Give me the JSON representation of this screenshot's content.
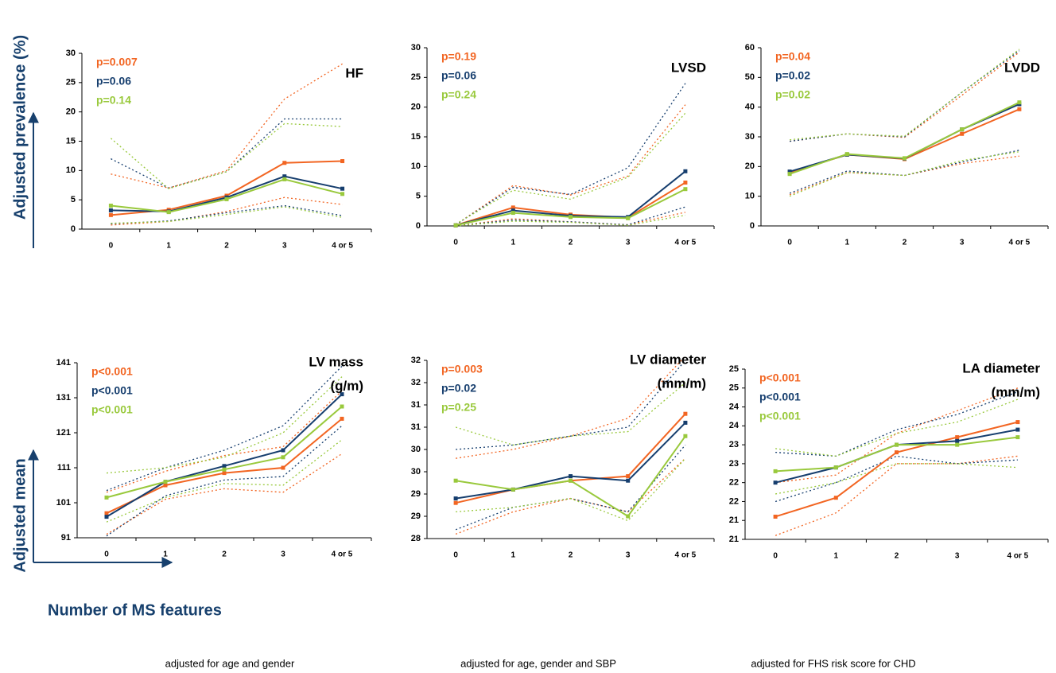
{
  "figure": {
    "y_label_top": "Adjusted prevalence (%)",
    "y_label_bottom": "Adjusted mean",
    "x_label": "Number of MS features",
    "notes": [
      "adjusted for age and gender",
      "adjusted for age, gender and SBP",
      "adjusted for FHS risk score for CHD"
    ]
  },
  "chart_data": [
    {
      "type": "line",
      "title": "HF",
      "categories": [
        "0",
        "1",
        "2",
        "3",
        "4 or 5"
      ],
      "ylim": [
        0,
        30
      ],
      "yticks": [
        0,
        5,
        10,
        15,
        20,
        25,
        30
      ],
      "series": [
        {
          "name": "p=0.007",
          "color": "#f26522",
          "values": [
            2.4,
            3.3,
            5.7,
            11.3,
            11.6
          ],
          "upper": [
            9.4,
            7.0,
            10.0,
            22.2,
            28.2
          ],
          "lower": [
            0.7,
            1.3,
            3.0,
            5.4,
            4.2
          ]
        },
        {
          "name": "p=0.06",
          "color": "#163e6e",
          "values": [
            3.2,
            3.0,
            5.4,
            9.0,
            6.9
          ],
          "upper": [
            12.0,
            7.0,
            9.8,
            18.8,
            18.8
          ],
          "lower": [
            0.9,
            1.4,
            2.8,
            4.0,
            2.3
          ]
        },
        {
          "name": "p=0.14",
          "color": "#99c93c",
          "values": [
            4.0,
            2.9,
            5.1,
            8.5,
            6.0
          ],
          "upper": [
            15.5,
            6.9,
            9.8,
            18.0,
            17.5
          ],
          "lower": [
            1.0,
            1.3,
            2.5,
            3.8,
            2.0
          ]
        }
      ]
    },
    {
      "type": "line",
      "title": "LVSD",
      "categories": [
        "0",
        "1",
        "2",
        "3",
        "4 or 5"
      ],
      "ylim": [
        0,
        30
      ],
      "yticks": [
        0,
        5,
        10,
        15,
        20,
        25,
        30
      ],
      "series": [
        {
          "name": "p=0.19",
          "color": "#f26522",
          "values": [
            0.1,
            3.1,
            1.9,
            1.4,
            7.3
          ],
          "upper": [
            0.2,
            6.8,
            5.2,
            8.4,
            20.4
          ],
          "lower": [
            0.0,
            1.2,
            0.7,
            0.2,
            2.3
          ]
        },
        {
          "name": "p=0.06",
          "color": "#163e6e",
          "values": [
            0.1,
            2.6,
            1.7,
            1.5,
            9.2
          ],
          "upper": [
            0.2,
            6.5,
            5.3,
            9.8,
            24.0
          ],
          "lower": [
            0.0,
            1.0,
            0.7,
            0.2,
            3.2
          ]
        },
        {
          "name": "p=0.24",
          "color": "#99c93c",
          "values": [
            0.1,
            2.2,
            1.5,
            1.3,
            6.2
          ],
          "upper": [
            0.3,
            6.0,
            4.5,
            8.2,
            19.0
          ],
          "lower": [
            0.0,
            0.8,
            0.6,
            0.1,
            1.8
          ]
        }
      ]
    },
    {
      "type": "line",
      "title": "LVDD",
      "categories": [
        "0",
        "1",
        "2",
        "3",
        "4 or 5"
      ],
      "ylim": [
        0,
        60
      ],
      "yticks": [
        0,
        10,
        20,
        30,
        40,
        50,
        60
      ],
      "series": [
        {
          "name": "p=0.04",
          "color": "#f26522",
          "values": [
            18.0,
            24.0,
            22.5,
            31.0,
            39.3
          ],
          "upper": [
            28.5,
            31.0,
            29.8,
            44.0,
            58.5
          ],
          "lower": [
            10.5,
            18.0,
            17.0,
            21.0,
            23.5
          ]
        },
        {
          "name": "p=0.02",
          "color": "#163e6e",
          "values": [
            18.3,
            24.0,
            22.7,
            32.5,
            41.0
          ],
          "upper": [
            28.5,
            31.0,
            30.0,
            45.0,
            59.0
          ],
          "lower": [
            11.0,
            18.5,
            17.0,
            21.5,
            25.5
          ]
        },
        {
          "name": "p=0.02",
          "color": "#99c93c",
          "values": [
            17.5,
            24.2,
            22.8,
            32.5,
            41.6
          ],
          "upper": [
            29.0,
            31.0,
            30.2,
            45.0,
            59.5
          ],
          "lower": [
            10.0,
            18.0,
            17.0,
            22.0,
            25.0
          ]
        }
      ]
    },
    {
      "type": "line",
      "title": "LV mass",
      "subtitle": "(g/m)",
      "categories": [
        "0",
        "1",
        "2",
        "3",
        "4 or 5"
      ],
      "ylim": [
        91,
        141
      ],
      "yticks": [
        91,
        101,
        111,
        121,
        131,
        141
      ],
      "series": [
        {
          "name": "p<0.001",
          "color": "#f26522",
          "values": [
            98,
            106,
            109.5,
            111,
            125
          ],
          "upper": [
            104,
            110,
            114.5,
            117,
            133
          ],
          "lower": [
            92,
            102,
            105,
            104,
            115
          ]
        },
        {
          "name": "p<0.001",
          "color": "#163e6e",
          "values": [
            97,
            107,
            111.5,
            116,
            132
          ],
          "upper": [
            104.5,
            111,
            116,
            123,
            140
          ],
          "lower": [
            91.5,
            103,
            107.5,
            108.5,
            123
          ]
        },
        {
          "name": "p<0.001",
          "color": "#99c93c",
          "values": [
            102.5,
            107,
            110.5,
            114,
            128.5
          ],
          "upper": [
            109.5,
            111,
            114,
            121,
            137
          ],
          "lower": [
            95.5,
            102.5,
            106.5,
            106,
            119
          ]
        }
      ]
    },
    {
      "type": "line",
      "title": "LV diameter",
      "subtitle": "(mm/m)",
      "categories": [
        "0",
        "1",
        "2",
        "3",
        "4 or 5"
      ],
      "ylim": [
        28,
        32
      ],
      "yticks": [
        28,
        {
          "value": 28.5,
          "label": "29"
        },
        29,
        {
          "value": 29.5,
          "label": "30"
        },
        30,
        {
          "value": 30.5,
          "label": "31"
        },
        31,
        {
          "value": 31.5,
          "label": "32"
        },
        32
      ],
      "series": [
        {
          "name": "p=0.003",
          "color": "#f26522",
          "values": [
            28.8,
            29.1,
            29.3,
            29.4,
            30.8
          ],
          "upper": [
            29.8,
            30.0,
            30.3,
            30.7,
            32.1
          ],
          "lower": [
            28.1,
            28.6,
            28.9,
            28.6,
            29.8
          ]
        },
        {
          "name": "p=0.02",
          "color": "#163e6e",
          "values": [
            28.9,
            29.1,
            29.4,
            29.3,
            30.6
          ],
          "upper": [
            30.0,
            30.1,
            30.3,
            30.5,
            32.0
          ],
          "lower": [
            28.2,
            28.7,
            28.9,
            28.6,
            30.1
          ]
        },
        {
          "name": "p=0.25",
          "color": "#99c93c",
          "values": [
            29.3,
            29.1,
            29.3,
            28.5,
            30.3
          ],
          "upper": [
            30.5,
            30.1,
            30.3,
            30.4,
            31.5
          ],
          "lower": [
            28.6,
            28.7,
            28.9,
            28.4,
            29.8
          ]
        }
      ]
    },
    {
      "type": "line",
      "title": "LA diameter",
      "subtitle": "(mm/m)",
      "categories": [
        "0",
        "1",
        "2",
        "3",
        "4 or 5"
      ],
      "ylim": [
        20.5,
        25
      ],
      "yticks": [
        {
          "value": 20.5,
          "label": "21"
        },
        21,
        {
          "value": 21.5,
          "label": "22"
        },
        22,
        {
          "value": 22.5,
          "label": "23"
        },
        23,
        {
          "value": 23.5,
          "label": "24"
        },
        24,
        {
          "value": 24.5,
          "label": "25"
        },
        25
      ],
      "series": [
        {
          "name": "p<0.001",
          "color": "#f26522",
          "values": [
            21.1,
            21.6,
            22.8,
            23.2,
            23.6
          ],
          "upper": [
            22.0,
            22.2,
            23.3,
            23.9,
            24.5
          ],
          "lower": [
            20.6,
            21.2,
            22.5,
            22.5,
            22.7
          ]
        },
        {
          "name": "p<0.001",
          "color": "#163e6e",
          "values": [
            22.0,
            22.4,
            23.0,
            23.1,
            23.4
          ],
          "upper": [
            22.8,
            22.7,
            23.4,
            23.8,
            24.4
          ],
          "lower": [
            21.5,
            22.0,
            22.7,
            22.5,
            22.6
          ]
        },
        {
          "name": "p<0.001",
          "color": "#99c93c",
          "values": [
            22.3,
            22.4,
            23.0,
            23.0,
            23.2
          ],
          "upper": [
            22.9,
            22.7,
            23.3,
            23.6,
            24.2
          ],
          "lower": [
            21.7,
            22.0,
            22.5,
            22.5,
            22.4
          ]
        }
      ]
    }
  ]
}
